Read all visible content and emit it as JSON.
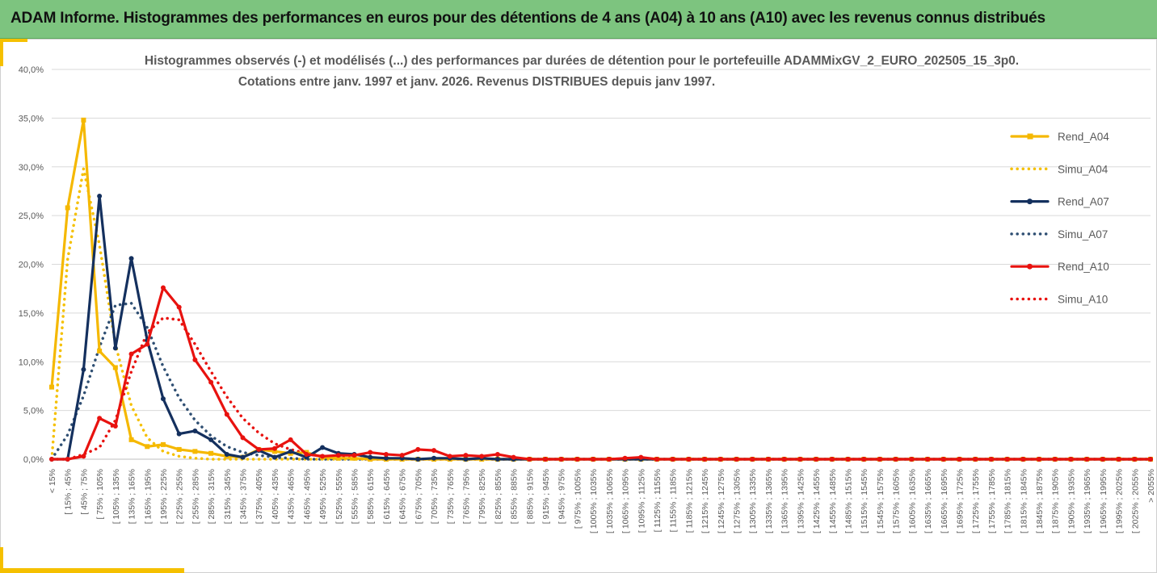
{
  "banner": {
    "title": "ADAM Informe. Histogrammes des performances en euros pour des détentions de 4 ans (A04) à 10 ans (A10) avec les revenus connus distribués"
  },
  "chart_data": {
    "type": "line",
    "title": "Histogrammes observés (-) et modélisés (...) des performances par durées de détention pour  le portefeuille ADAMMixGV_2_EURO_202505_15_3p0.",
    "subtitle": "Cotations  entre janv. 1997 et janv. 2026. Revenus DISTRIBUES depuis janv 1997.",
    "xlabel": "",
    "ylabel": "",
    "ylim": [
      0,
      0.4
    ],
    "yticks": [
      "0,0%",
      "5,0%",
      "10,0%",
      "15,0%",
      "20,0%",
      "25,0%",
      "30,0%",
      "35,0%",
      "40,0%"
    ],
    "grid": true,
    "legend_position": "right",
    "categories": [
      "< 15%",
      "[ 15% ; 45%",
      "[ 45% ; 75%",
      "[ 75% ; 105%",
      "[ 105% ; 135%",
      "[ 135% ; 165%",
      "[ 165% ; 195%",
      "[ 195% ; 225%",
      "[ 225% ; 255%",
      "[ 255% ; 285%",
      "[ 285% ; 315%",
      "[ 315% ; 345%",
      "[ 345% ; 375%",
      "[ 375% ; 405%",
      "[ 405% ; 435%",
      "[ 435% ; 465%",
      "[ 465% ; 495%",
      "[ 495% ; 525%",
      "[ 525% ; 555%",
      "[ 555% ; 585%",
      "[ 585% ; 615%",
      "[ 615% ; 645%",
      "[ 645% ; 675%",
      "[ 675% ; 705%",
      "[ 705% ; 735%",
      "[ 735% ; 765%",
      "[ 765% ; 795%",
      "[ 795% ; 825%",
      "[ 825% ; 855%",
      "[ 855% ; 885%",
      "[ 885% ; 915%",
      "[ 915% ; 945%",
      "[ 945% ; 975%",
      "[ 975% ; 1005%",
      "[ 1005% ; 1035%",
      "[ 1035% ; 1065%",
      "[ 1065% ; 1095%",
      "[ 1095% ; 1125%",
      "[ 1125% ; 1155%",
      "[ 1155% ; 1185%",
      "[ 1185% ; 1215%",
      "[ 1215% ; 1245%",
      "[ 1245% ; 1275%",
      "[ 1275% ; 1305%",
      "[ 1305% ; 1335%",
      "[ 1335% ; 1365%",
      "[ 1365% ; 1395%",
      "[ 1395% ; 1425%",
      "[ 1425% ; 1455%",
      "[ 1455% ; 1485%",
      "[ 1485% ; 1515%",
      "[ 1515% ; 1545%",
      "[ 1545% ; 1575%",
      "[ 1575% ; 1605%",
      "[ 1605% ; 1635%",
      "[ 1635% ; 1665%",
      "[ 1665% ; 1695%",
      "[ 1695% ; 1725%",
      "[ 1725% ; 1755%",
      "[ 1755% ; 1785%",
      "[ 1785% ; 1815%",
      "[ 1815% ; 1845%",
      "[ 1845% ; 1875%",
      "[ 1875% ; 1905%",
      "[ 1905% ; 1935%",
      "[ 1935% ; 1965%",
      "[ 1965% ; 1995%",
      "[ 1995% ; 2025%",
      "[ 2025% ; 2055%",
      "> 2055%"
    ],
    "series": [
      {
        "name": "Rend_A04",
        "color": "#f5b800",
        "style": "solid",
        "marker": "square",
        "values": [
          0.074,
          0.258,
          0.348,
          0.111,
          0.094,
          0.02,
          0.013,
          0.015,
          0.01,
          0.008,
          0.006,
          0.003,
          0.002,
          0.01,
          0.008,
          0.006,
          0.007,
          0.002,
          0.001,
          0.001,
          0,
          0,
          0,
          0,
          0,
          0,
          0,
          0,
          0,
          0,
          0,
          0,
          0,
          0,
          0,
          0,
          0,
          0,
          0,
          0,
          0,
          0,
          0,
          0,
          0,
          0,
          0,
          0,
          0,
          0,
          0,
          0,
          0,
          0,
          0,
          0,
          0,
          0,
          0,
          0,
          0,
          0,
          0,
          0,
          0,
          0,
          0,
          0,
          0,
          0
        ]
      },
      {
        "name": "Simu_A04",
        "color": "#f5c000",
        "style": "dotted",
        "marker": "none",
        "values": [
          0.0,
          0.205,
          0.298,
          0.22,
          0.118,
          0.055,
          0.022,
          0.008,
          0.003,
          0.001,
          0,
          0,
          0,
          0,
          0,
          0,
          0,
          0,
          0,
          0,
          0,
          0,
          0,
          0,
          0,
          0,
          0,
          0,
          0,
          0,
          0,
          0,
          0,
          0,
          0,
          0,
          0,
          0,
          0,
          0,
          0,
          0,
          0,
          0,
          0,
          0,
          0,
          0,
          0,
          0,
          0,
          0,
          0,
          0,
          0,
          0,
          0,
          0,
          0,
          0,
          0,
          0,
          0,
          0,
          0,
          0,
          0,
          0,
          0,
          0
        ]
      },
      {
        "name": "Rend_A07",
        "color": "#14305e",
        "style": "solid",
        "marker": "circle",
        "values": [
          0.0,
          0.0,
          0.092,
          0.27,
          0.114,
          0.206,
          0.122,
          0.062,
          0.026,
          0.029,
          0.02,
          0.005,
          0.002,
          0.009,
          0.002,
          0.008,
          0.002,
          0.012,
          0.006,
          0.005,
          0.002,
          0.001,
          0.001,
          0,
          0.001,
          0.001,
          0,
          0.001,
          0,
          0,
          0,
          0,
          0,
          0,
          0,
          0,
          0,
          0,
          0,
          0,
          0,
          0,
          0,
          0,
          0,
          0,
          0,
          0,
          0,
          0,
          0,
          0,
          0,
          0,
          0,
          0,
          0,
          0,
          0,
          0,
          0,
          0,
          0,
          0,
          0,
          0,
          0,
          0,
          0,
          0
        ]
      },
      {
        "name": "Simu_A07",
        "color": "#2f4f73",
        "style": "dotted",
        "marker": "none",
        "values": [
          0.0,
          0.025,
          0.065,
          0.115,
          0.158,
          0.16,
          0.135,
          0.095,
          0.063,
          0.04,
          0.024,
          0.013,
          0.007,
          0.004,
          0.002,
          0.001,
          0,
          0,
          0,
          0,
          0,
          0,
          0,
          0,
          0,
          0,
          0,
          0,
          0,
          0,
          0,
          0,
          0,
          0,
          0,
          0,
          0,
          0,
          0,
          0,
          0,
          0,
          0,
          0,
          0,
          0,
          0,
          0,
          0,
          0,
          0,
          0,
          0,
          0,
          0,
          0,
          0,
          0,
          0,
          0,
          0,
          0,
          0,
          0,
          0,
          0,
          0,
          0,
          0,
          0
        ]
      },
      {
        "name": "Rend_A10",
        "color": "#e8120f",
        "style": "solid",
        "marker": "circle",
        "values": [
          0.0,
          0.0,
          0.003,
          0.042,
          0.034,
          0.108,
          0.118,
          0.176,
          0.156,
          0.102,
          0.079,
          0.046,
          0.022,
          0.01,
          0.011,
          0.02,
          0.005,
          0.003,
          0.004,
          0.004,
          0.007,
          0.005,
          0.004,
          0.01,
          0.009,
          0.003,
          0.004,
          0.003,
          0.005,
          0.002,
          0,
          0,
          0,
          0,
          0,
          0,
          0.001,
          0.002,
          0,
          0,
          0,
          0,
          0,
          0,
          0,
          0,
          0,
          0,
          0,
          0,
          0,
          0,
          0,
          0,
          0,
          0,
          0,
          0,
          0,
          0,
          0,
          0,
          0,
          0,
          0,
          0,
          0,
          0,
          0,
          0
        ]
      },
      {
        "name": "Simu_A10",
        "color": "#e8120f",
        "style": "dotted",
        "marker": "none",
        "values": [
          0.0,
          0.0,
          0.005,
          0.012,
          0.04,
          0.09,
          0.13,
          0.145,
          0.143,
          0.118,
          0.09,
          0.064,
          0.042,
          0.027,
          0.016,
          0.01,
          0.006,
          0.003,
          0.002,
          0.001,
          0,
          0,
          0,
          0,
          0,
          0,
          0,
          0,
          0,
          0,
          0,
          0,
          0,
          0,
          0,
          0,
          0,
          0,
          0,
          0,
          0,
          0,
          0,
          0,
          0,
          0,
          0,
          0,
          0,
          0,
          0,
          0,
          0,
          0,
          0,
          0,
          0,
          0,
          0,
          0,
          0,
          0,
          0,
          0,
          0,
          0,
          0,
          0,
          0,
          0
        ]
      }
    ]
  }
}
